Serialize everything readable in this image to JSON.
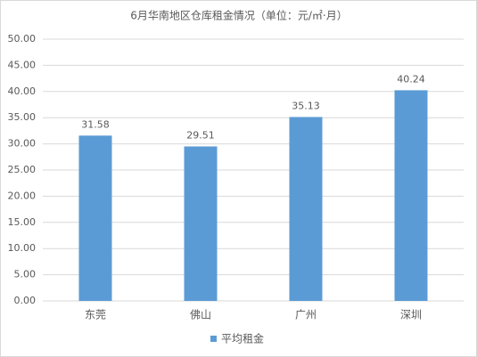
{
  "chart_data": {
    "type": "bar",
    "title": "6月华南地区仓库租金情况（单位：元/㎡·月）",
    "categories": [
      "东莞",
      "佛山",
      "广州",
      "深圳"
    ],
    "series": [
      {
        "name": "平均租金",
        "color": "#5b9bd5",
        "values": [
          31.58,
          29.51,
          35.13,
          40.24
        ]
      }
    ],
    "ylim": [
      0,
      50
    ],
    "yticks": [
      {
        "value": 0,
        "label": "0.00"
      },
      {
        "value": 5,
        "label": "5.00"
      },
      {
        "value": 10,
        "label": "10.00"
      },
      {
        "value": 15,
        "label": "15.00"
      },
      {
        "value": 20,
        "label": "20.00"
      },
      {
        "value": 25,
        "label": "25.00"
      },
      {
        "value": 30,
        "label": "30.00"
      },
      {
        "value": 35,
        "label": "35.00"
      },
      {
        "value": 40,
        "label": "40.00"
      },
      {
        "value": 45,
        "label": "45.00"
      },
      {
        "value": 50,
        "label": "50.00"
      }
    ],
    "grid": true,
    "legend": "bottom"
  }
}
